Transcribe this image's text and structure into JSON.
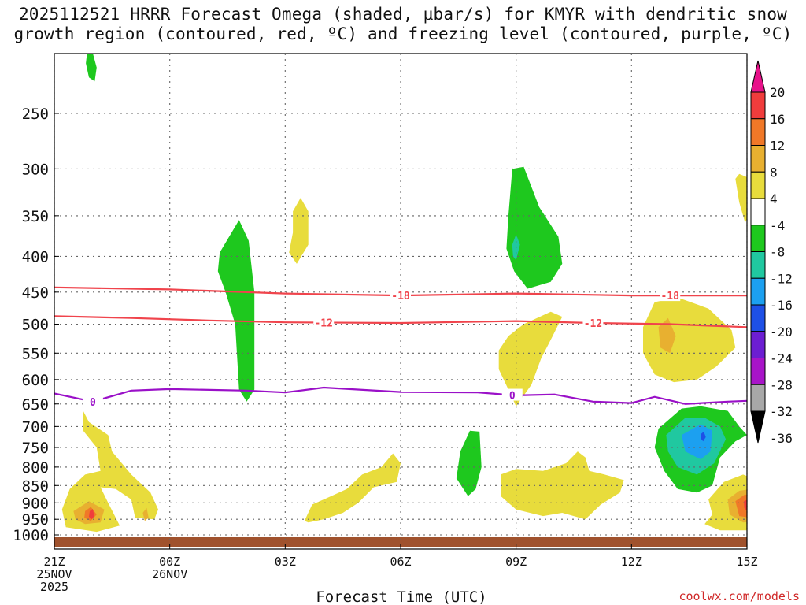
{
  "title": {
    "line1": "2025112521 HRRR Forecast Omega (shaded, μbar/s) for KMYR with dendritic snow",
    "line2": "growth region (contoured, red, ºC) and freezing level (contoured, purple, ºC)"
  },
  "credit": "coolwx.com/models",
  "chart_data": {
    "type": "heatmap",
    "description_type": "time-pressure cross section (contour fill)",
    "xlabel": "Forecast Time (UTC)",
    "ylabel": "",
    "x_ticks": [
      {
        "hour": 0,
        "lines": [
          "21Z",
          "25NOV",
          "2025"
        ]
      },
      {
        "hour": 3,
        "lines": [
          "00Z",
          "26NOV"
        ]
      },
      {
        "hour": 6,
        "lines": [
          "03Z"
        ]
      },
      {
        "hour": 9,
        "lines": [
          "06Z"
        ]
      },
      {
        "hour": 12,
        "lines": [
          "09Z"
        ]
      },
      {
        "hour": 15,
        "lines": [
          "12Z"
        ]
      },
      {
        "hour": 18,
        "lines": [
          "15Z"
        ]
      }
    ],
    "xlim": [
      0,
      18
    ],
    "y_ticks": [
      250,
      300,
      350,
      400,
      450,
      500,
      550,
      600,
      650,
      700,
      750,
      800,
      850,
      900,
      950,
      1000
    ],
    "ylim": [
      200,
      1013
    ],
    "y_scale": "log-pressure",
    "grid": true,
    "colorbar": {
      "labels": [
        "20",
        "16",
        "12",
        "8",
        "4",
        "-4",
        "-8",
        "-12",
        "-16",
        "-20",
        "-24",
        "-28",
        "-32",
        "-36"
      ],
      "colors": [
        "#e8128a",
        "#f03c3c",
        "#f07828",
        "#e8b030",
        "#e8dc3c",
        "#ffffff",
        "#1ec81e",
        "#20c8a0",
        "#1ca0f0",
        "#1e50e6",
        "#6c1ed2",
        "#a814c8",
        "#a8a8a8",
        "#000000"
      ]
    },
    "omega_regions": [
      {
        "level": -8,
        "points": [
          [
            0.85,
            205
          ],
          [
            1.0,
            205
          ],
          [
            1.1,
            215
          ],
          [
            1.05,
            225
          ],
          [
            0.9,
            222
          ],
          [
            0.82,
            212
          ]
        ]
      },
      {
        "level": -8,
        "points": [
          [
            4.3,
            395
          ],
          [
            4.8,
            355
          ],
          [
            5.05,
            380
          ],
          [
            5.2,
            450
          ],
          [
            5.2,
            620
          ],
          [
            5.0,
            645
          ],
          [
            4.8,
            620
          ],
          [
            4.7,
            500
          ],
          [
            4.45,
            450
          ],
          [
            4.25,
            420
          ]
        ]
      },
      {
        "level": -8,
        "points": [
          [
            11.9,
            300
          ],
          [
            12.2,
            298
          ],
          [
            12.6,
            340
          ],
          [
            13.1,
            375
          ],
          [
            13.2,
            410
          ],
          [
            12.9,
            435
          ],
          [
            12.3,
            445
          ],
          [
            11.95,
            420
          ],
          [
            11.75,
            390
          ],
          [
            11.8,
            350
          ]
        ]
      },
      {
        "level": -12,
        "points": [
          [
            11.9,
            385
          ],
          [
            12.0,
            372
          ],
          [
            12.1,
            385
          ],
          [
            12.0,
            405
          ],
          [
            11.92,
            400
          ]
        ]
      },
      {
        "level": -8,
        "points": [
          [
            10.55,
            760
          ],
          [
            10.8,
            710
          ],
          [
            11.05,
            712
          ],
          [
            11.1,
            800
          ],
          [
            10.95,
            860
          ],
          [
            10.75,
            880
          ],
          [
            10.45,
            830
          ]
        ]
      },
      {
        "level": -8,
        "points": [
          [
            15.7,
            705
          ],
          [
            16.3,
            660
          ],
          [
            16.8,
            655
          ],
          [
            17.5,
            665
          ],
          [
            17.8,
            700
          ],
          [
            18.0,
            720
          ],
          [
            17.7,
            735
          ],
          [
            17.3,
            775
          ],
          [
            17.1,
            850
          ],
          [
            16.7,
            870
          ],
          [
            16.2,
            860
          ],
          [
            15.85,
            810
          ],
          [
            15.6,
            750
          ]
        ]
      },
      {
        "level": -12,
        "points": [
          [
            15.9,
            720
          ],
          [
            16.4,
            680
          ],
          [
            16.9,
            680
          ],
          [
            17.3,
            700
          ],
          [
            17.45,
            730
          ],
          [
            17.15,
            790
          ],
          [
            16.7,
            820
          ],
          [
            16.2,
            800
          ],
          [
            15.95,
            760
          ]
        ]
      },
      {
        "level": -16,
        "points": [
          [
            16.3,
            720
          ],
          [
            16.8,
            695
          ],
          [
            17.1,
            710
          ],
          [
            17.05,
            760
          ],
          [
            16.8,
            780
          ],
          [
            16.4,
            760
          ]
        ]
      },
      {
        "level": -20,
        "points": [
          [
            16.8,
            718
          ],
          [
            16.88,
            712
          ],
          [
            16.93,
            725
          ],
          [
            16.86,
            735
          ],
          [
            16.8,
            728
          ]
        ]
      },
      {
        "level": 4,
        "points": [
          [
            6.2,
            345
          ],
          [
            6.4,
            330
          ],
          [
            6.6,
            345
          ],
          [
            6.6,
            385
          ],
          [
            6.3,
            410
          ],
          [
            6.1,
            395
          ],
          [
            6.2,
            370
          ]
        ]
      },
      {
        "level": 4,
        "points": [
          [
            17.8,
            305
          ],
          [
            18.1,
            310
          ],
          [
            18.2,
            320
          ],
          [
            18.1,
            345
          ],
          [
            17.95,
            358
          ],
          [
            17.8,
            335
          ],
          [
            17.7,
            310
          ]
        ]
      },
      {
        "level": 4,
        "points": [
          [
            11.55,
            545
          ],
          [
            11.8,
            520
          ],
          [
            12.2,
            500
          ],
          [
            12.9,
            480
          ],
          [
            13.2,
            488
          ],
          [
            12.95,
            520
          ],
          [
            12.65,
            560
          ],
          [
            12.4,
            610
          ],
          [
            12.0,
            655
          ],
          [
            11.8,
            620
          ],
          [
            11.55,
            580
          ]
        ]
      },
      {
        "level": 4,
        "points": [
          [
            15.3,
            505
          ],
          [
            15.6,
            465
          ],
          [
            16.2,
            458
          ],
          [
            17.0,
            475
          ],
          [
            17.6,
            510
          ],
          [
            17.7,
            540
          ],
          [
            17.2,
            575
          ],
          [
            16.7,
            600
          ],
          [
            16.1,
            605
          ],
          [
            15.6,
            590
          ],
          [
            15.3,
            550
          ]
        ]
      },
      {
        "level": 8,
        "points": [
          [
            15.7,
            505
          ],
          [
            15.95,
            490
          ],
          [
            16.15,
            520
          ],
          [
            16.0,
            550
          ],
          [
            15.75,
            540
          ]
        ]
      },
      {
        "level": 4,
        "points": [
          [
            0.75,
            665
          ],
          [
            0.9,
            690
          ],
          [
            1.4,
            720
          ],
          [
            1.5,
            760
          ],
          [
            2.0,
            820
          ],
          [
            2.5,
            870
          ],
          [
            2.7,
            920
          ],
          [
            2.6,
            950
          ],
          [
            2.1,
            945
          ],
          [
            2.0,
            890
          ],
          [
            1.6,
            860
          ],
          [
            1.2,
            855
          ],
          [
            1.4,
            900
          ],
          [
            1.7,
            970
          ],
          [
            1.1,
            990
          ],
          [
            0.3,
            975
          ],
          [
            0.2,
            920
          ],
          [
            0.4,
            860
          ],
          [
            0.8,
            820
          ],
          [
            1.2,
            810
          ],
          [
            1.1,
            750
          ],
          [
            0.75,
            710
          ]
        ]
      },
      {
        "level": 8,
        "points": [
          [
            0.5,
            925
          ],
          [
            0.9,
            895
          ],
          [
            1.3,
            920
          ],
          [
            1.2,
            960
          ],
          [
            0.8,
            965
          ],
          [
            0.55,
            950
          ]
        ]
      },
      {
        "level": 12,
        "points": [
          [
            0.8,
            925
          ],
          [
            0.95,
            912
          ],
          [
            1.1,
            935
          ],
          [
            0.95,
            955
          ],
          [
            0.78,
            945
          ]
        ]
      },
      {
        "level": 16,
        "points": [
          [
            0.92,
            925
          ],
          [
            1.0,
            918
          ],
          [
            1.04,
            940
          ],
          [
            0.97,
            950
          ],
          [
            0.9,
            942
          ]
        ]
      },
      {
        "level": 8,
        "points": [
          [
            2.3,
            930
          ],
          [
            2.4,
            915
          ],
          [
            2.45,
            945
          ],
          [
            2.35,
            955
          ]
        ]
      },
      {
        "level": 4,
        "points": [
          [
            6.5,
            955
          ],
          [
            6.7,
            905
          ],
          [
            7.1,
            885
          ],
          [
            7.6,
            860
          ],
          [
            8.0,
            820
          ],
          [
            8.5,
            800
          ],
          [
            8.8,
            765
          ],
          [
            9.0,
            790
          ],
          [
            8.9,
            840
          ],
          [
            8.3,
            855
          ],
          [
            7.9,
            900
          ],
          [
            7.5,
            930
          ],
          [
            7.0,
            950
          ],
          [
            6.6,
            960
          ]
        ]
      },
      {
        "level": 4,
        "points": [
          [
            11.6,
            820
          ],
          [
            12.0,
            805
          ],
          [
            12.7,
            810
          ],
          [
            13.3,
            790
          ],
          [
            13.6,
            760
          ],
          [
            13.8,
            775
          ],
          [
            13.9,
            810
          ],
          [
            14.3,
            820
          ],
          [
            14.8,
            835
          ],
          [
            14.7,
            870
          ],
          [
            14.2,
            905
          ],
          [
            13.8,
            950
          ],
          [
            13.2,
            930
          ],
          [
            12.7,
            940
          ],
          [
            12.0,
            920
          ],
          [
            11.6,
            880
          ]
        ]
      },
      {
        "level": 4,
        "points": [
          [
            17.0,
            890
          ],
          [
            17.4,
            840
          ],
          [
            17.9,
            820
          ],
          [
            18.4,
            840
          ],
          [
            18.9,
            880
          ],
          [
            18.9,
            930
          ],
          [
            18.6,
            965
          ],
          [
            18.0,
            985
          ],
          [
            17.3,
            985
          ],
          [
            16.9,
            965
          ],
          [
            17.1,
            935
          ]
        ]
      },
      {
        "level": 8,
        "points": [
          [
            17.5,
            890
          ],
          [
            17.8,
            865
          ],
          [
            18.1,
            860
          ],
          [
            18.5,
            880
          ],
          [
            18.7,
            915
          ],
          [
            18.5,
            955
          ],
          [
            17.9,
            960
          ],
          [
            17.55,
            935
          ]
        ]
      },
      {
        "level": 12,
        "points": [
          [
            17.7,
            895
          ],
          [
            17.95,
            875
          ],
          [
            18.25,
            890
          ],
          [
            18.3,
            920
          ],
          [
            18.1,
            945
          ],
          [
            17.8,
            940
          ]
        ]
      },
      {
        "level": 16,
        "points": [
          [
            17.92,
            895
          ],
          [
            18.02,
            890
          ],
          [
            18.08,
            910
          ],
          [
            18.0,
            925
          ],
          [
            17.93,
            915
          ]
        ]
      }
    ],
    "contours": [
      {
        "name": "-18",
        "color": "#f0444c",
        "label": "-18",
        "label_at": [
          9.0,
          16.0
        ],
        "points": [
          [
            0,
            443
          ],
          [
            3,
            446
          ],
          [
            6,
            452
          ],
          [
            9,
            455
          ],
          [
            12,
            452
          ],
          [
            15,
            455
          ],
          [
            18,
            455
          ],
          [
            19,
            455
          ]
        ]
      },
      {
        "name": "-12",
        "color": "#f0444c",
        "label": "-12",
        "label_at": [
          7.0,
          14.0
        ],
        "points": [
          [
            0,
            487
          ],
          [
            2,
            490
          ],
          [
            4,
            494
          ],
          [
            6,
            497
          ],
          [
            9,
            498
          ],
          [
            12,
            495
          ],
          [
            14,
            498
          ],
          [
            16,
            500
          ],
          [
            18,
            505
          ],
          [
            19,
            507
          ]
        ]
      },
      {
        "name": "0",
        "color": "#9a10c8",
        "label": "0",
        "label_at": [
          1.0,
          11.9
        ],
        "points": [
          [
            0,
            628
          ],
          [
            1,
            645
          ],
          [
            2,
            622
          ],
          [
            3,
            619
          ],
          [
            5,
            622
          ],
          [
            6,
            626
          ],
          [
            7,
            616
          ],
          [
            9,
            625
          ],
          [
            11,
            626
          ],
          [
            12,
            632
          ],
          [
            13,
            630
          ],
          [
            14,
            645
          ],
          [
            15,
            648
          ],
          [
            15.6,
            635
          ],
          [
            16.4,
            650
          ],
          [
            17.5,
            645
          ],
          [
            19,
            640
          ]
        ]
      }
    ]
  }
}
